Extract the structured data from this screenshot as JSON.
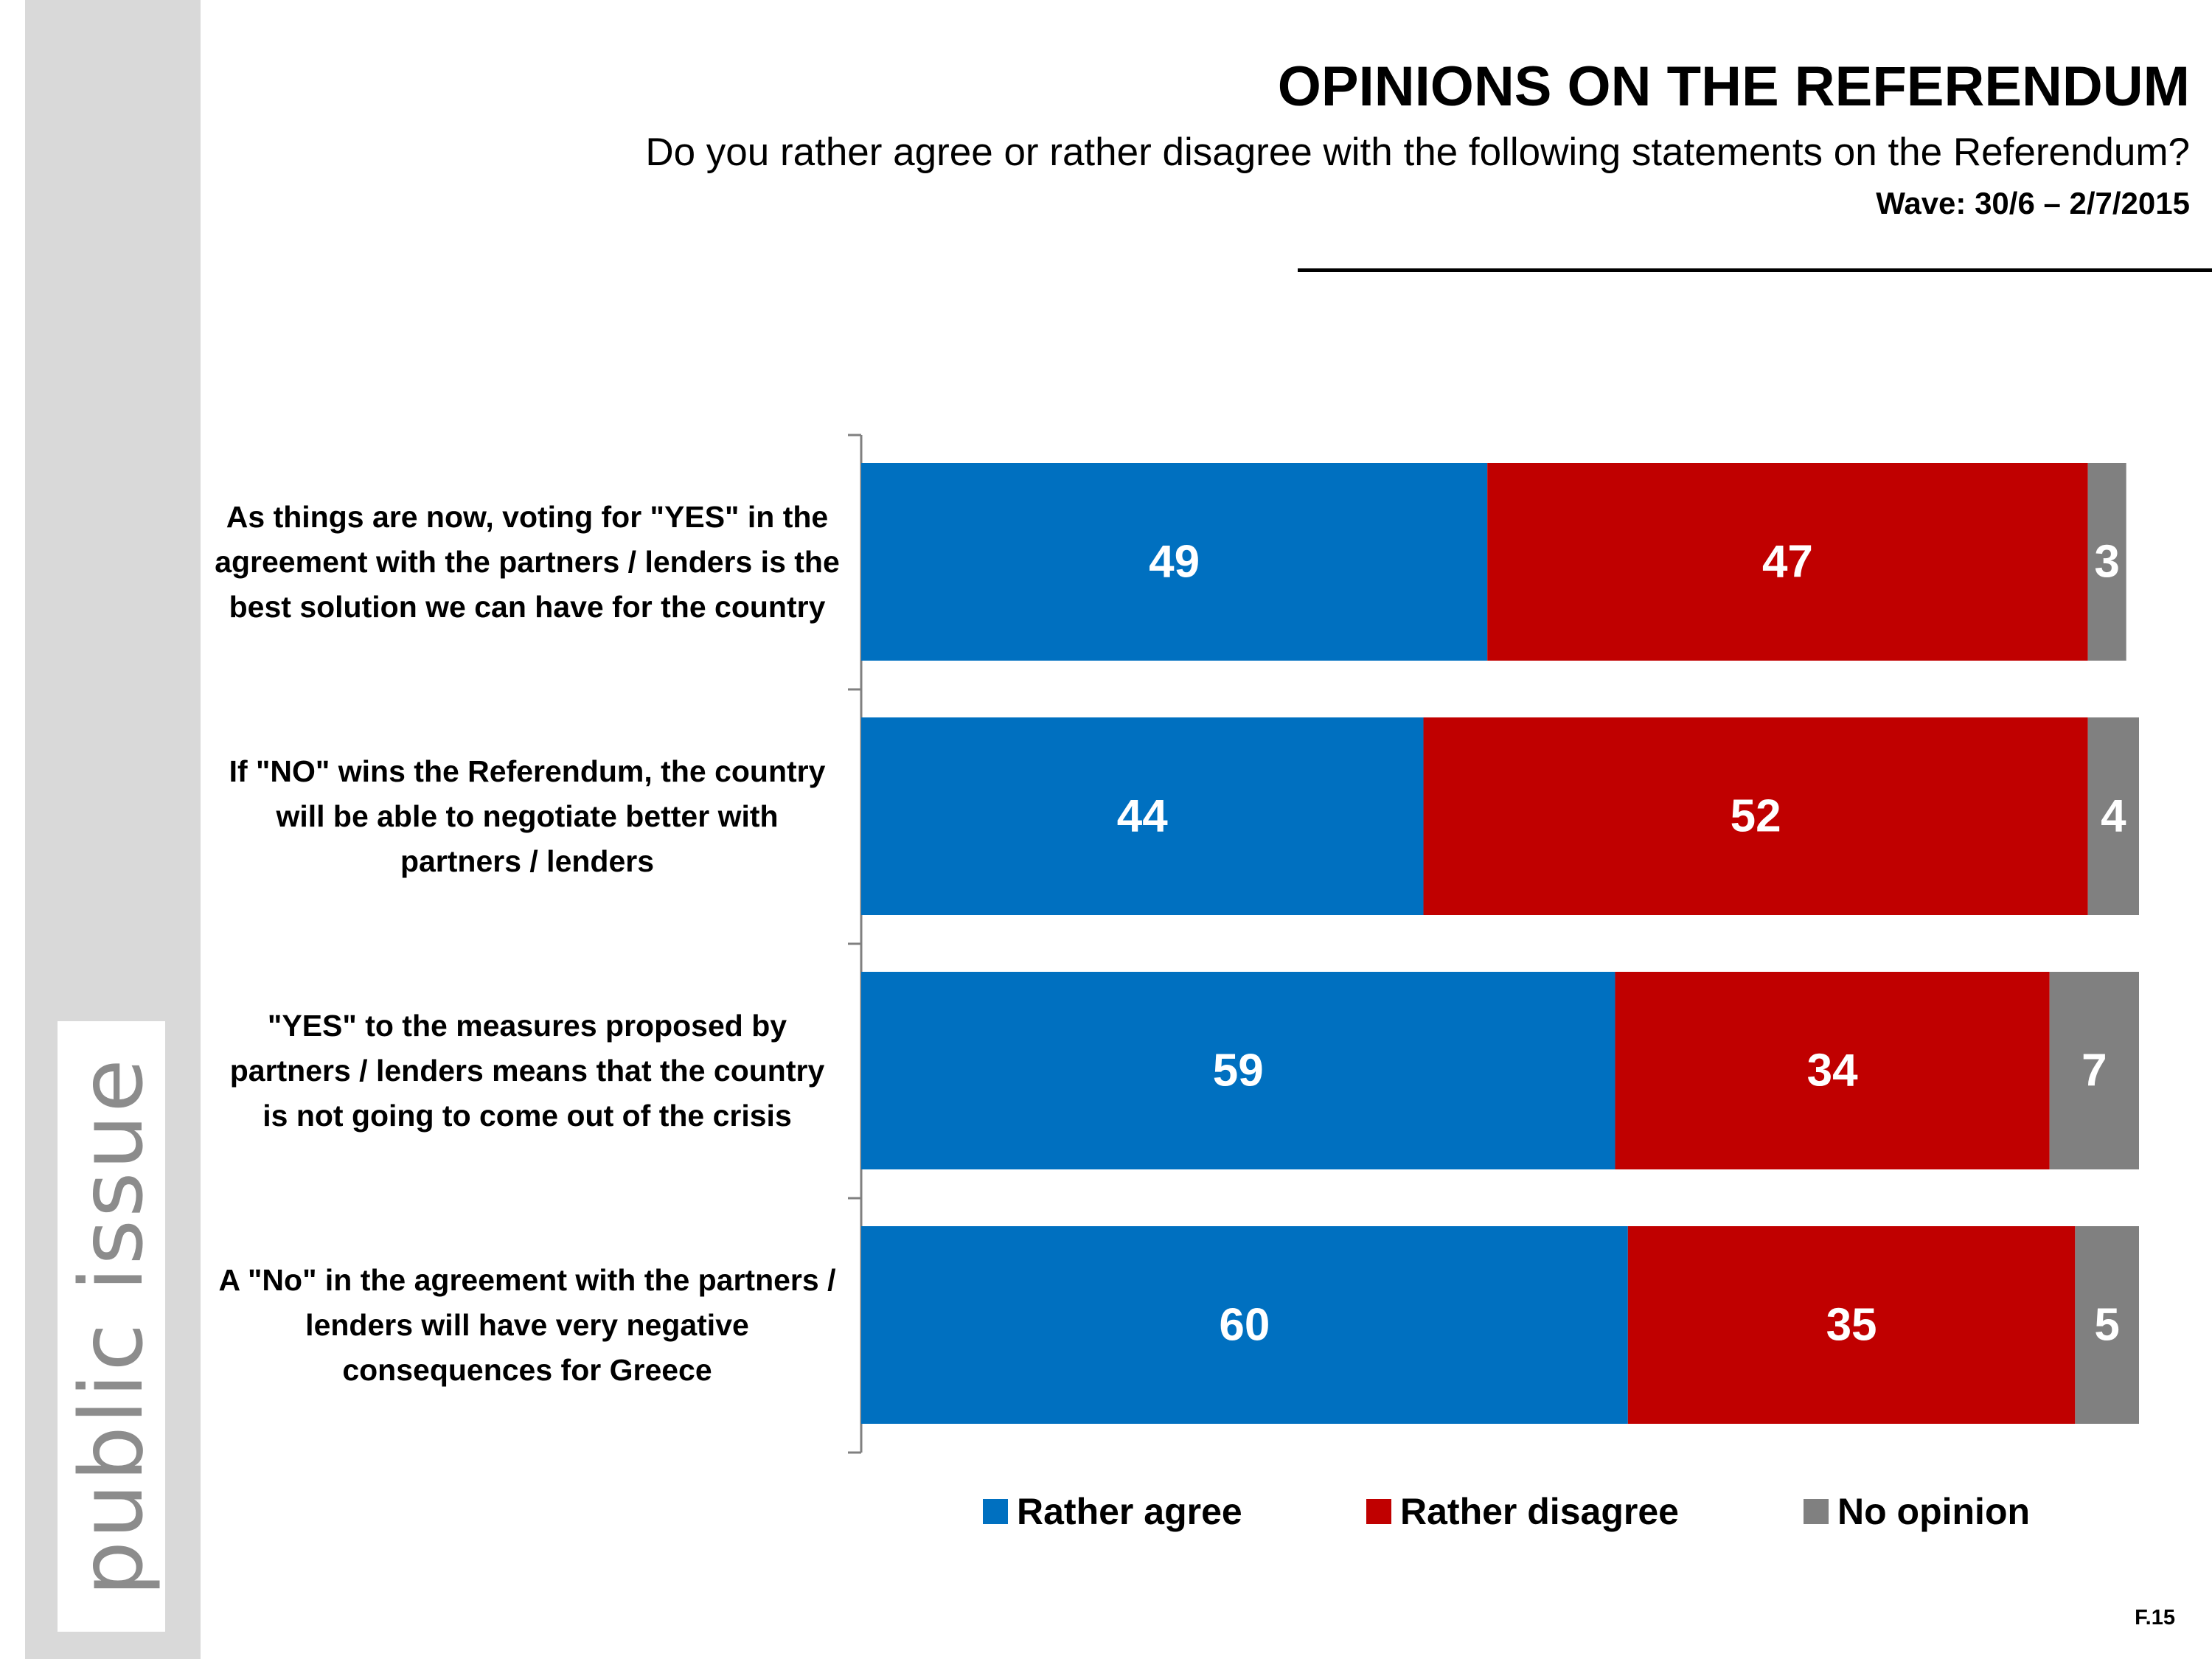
{
  "header": {
    "title": "OPINIONS ON THE REFERENDUM",
    "subtitle": "Do you rather agree or rather disagree with the following statements on the Referendum?",
    "wave": "Wave: 30/6 – 2/7/2015"
  },
  "brand": {
    "logo_text": "public issue"
  },
  "footer": {
    "code": "F.15"
  },
  "colors": {
    "agree": "#0070c0",
    "disagree": "#c00000",
    "no_opinion": "#808080",
    "sidebar": "#d9d9d9"
  },
  "chart_data": {
    "type": "bar",
    "orientation": "horizontal",
    "stacked": true,
    "categories": [
      "As things are now, voting for \"YES\" in the agreement with the partners / lenders is the best solution we can have for the country",
      "If \"NO\" wins the Referendum, the country will be able to negotiate better with partners / lenders",
      "\"YES\" to the measures proposed by partners / lenders means that the country is not going to come out of the crisis",
      "A \"No\" in the agreement with the partners / lenders will have very negative consequences for Greece"
    ],
    "series": [
      {
        "name": "Rather agree",
        "values": [
          49,
          44,
          59,
          60
        ]
      },
      {
        "name": "Rather disagree",
        "values": [
          47,
          52,
          34,
          35
        ]
      },
      {
        "name": "No opinion",
        "values": [
          3,
          4,
          7,
          5
        ]
      }
    ],
    "legend_position": "bottom",
    "grid": false
  }
}
